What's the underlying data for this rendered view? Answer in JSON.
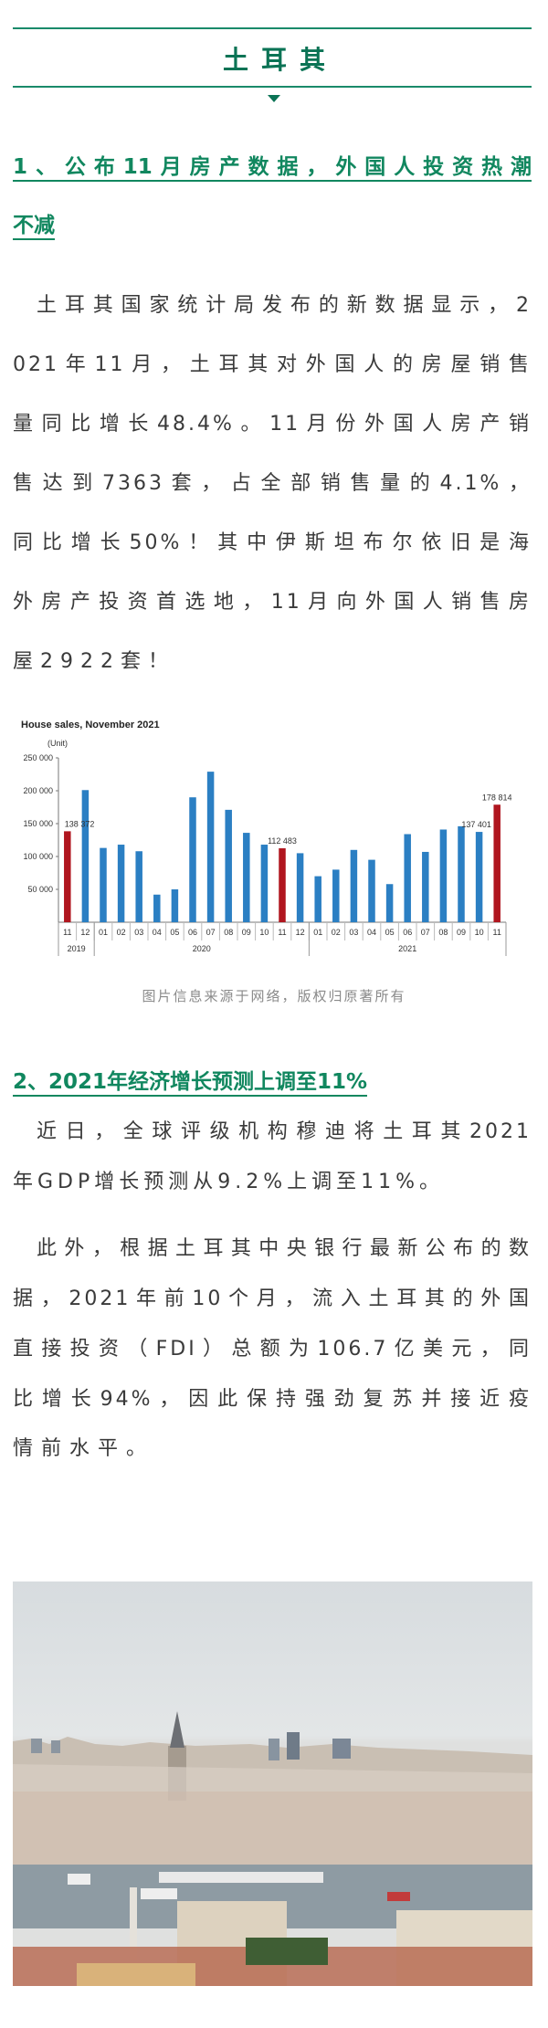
{
  "section_title": "土耳其",
  "heading1": {
    "lines": [
      "1、公布11月房产数据，外国人投资热潮",
      "不减"
    ]
  },
  "paragraph1": {
    "lines": [
      "土耳其国家统计局发布的新数据显示，2",
      "021年11月，土耳其对外国人的房屋销售",
      "量同比增长48.4%。11月份外国人房产销",
      "售达到7363套，占全部销售量的4.1%，",
      "同比增长50%！其中伊斯坦布尔依旧是海",
      "外房产投资首选地，11月向外国人销售房",
      "屋2922套！"
    ]
  },
  "chart_data": {
    "type": "bar",
    "title": "House sales, November 2021",
    "ylabel": "(Unit)",
    "ylim": [
      0,
      250000
    ],
    "yticks": [
      "250 000",
      "200 000",
      "150 000",
      "100 000",
      "50 000"
    ],
    "ytick_values": [
      250000,
      200000,
      150000,
      100000,
      50000
    ],
    "categories": [
      "11",
      "12",
      "01",
      "02",
      "03",
      "04",
      "05",
      "06",
      "07",
      "08",
      "09",
      "10",
      "11",
      "12",
      "01",
      "02",
      "03",
      "04",
      "05",
      "06",
      "07",
      "08",
      "09",
      "10",
      "11"
    ],
    "years": [
      {
        "label": "2019",
        "span": 2
      },
      {
        "label": "2020",
        "span": 12
      },
      {
        "label": "2021",
        "span": 11
      }
    ],
    "values": [
      138372,
      201000,
      113000,
      118000,
      108000,
      42000,
      50000,
      190000,
      229000,
      171000,
      136000,
      118000,
      112483,
      105000,
      70000,
      80000,
      110000,
      95000,
      58000,
      134000,
      107000,
      141000,
      146000,
      137401,
      178814
    ],
    "highlight": [
      0,
      12,
      24
    ],
    "data_labels": [
      {
        "index": 0,
        "text": "138 372"
      },
      {
        "index": 12,
        "text": "112 483"
      },
      {
        "index": 23,
        "text": "137 401"
      },
      {
        "index": 24,
        "text": "178 814"
      }
    ],
    "colors": {
      "bar": "#2b7fc3",
      "highlight": "#b0161f"
    }
  },
  "caption": "图片信息来源于网络，版权归原著所有",
  "heading2": "2、2021年经济增长预测上调至11%",
  "paragraph2": {
    "lines": [
      "近日，全球评级机构穆迪将土耳其2021",
      "年GDP增长预测从9.2%上调至11%。"
    ]
  },
  "paragraph3": {
    "lines": [
      "此外，根据土耳其中央银行最新公布的数",
      "据，2021年前10个月，流入土耳其的外国",
      "直接投资（FDI）总额为106.7亿美元，同",
      "比增长94%，因此保持强劲复苏并接近疫",
      "情前水平。"
    ]
  }
}
